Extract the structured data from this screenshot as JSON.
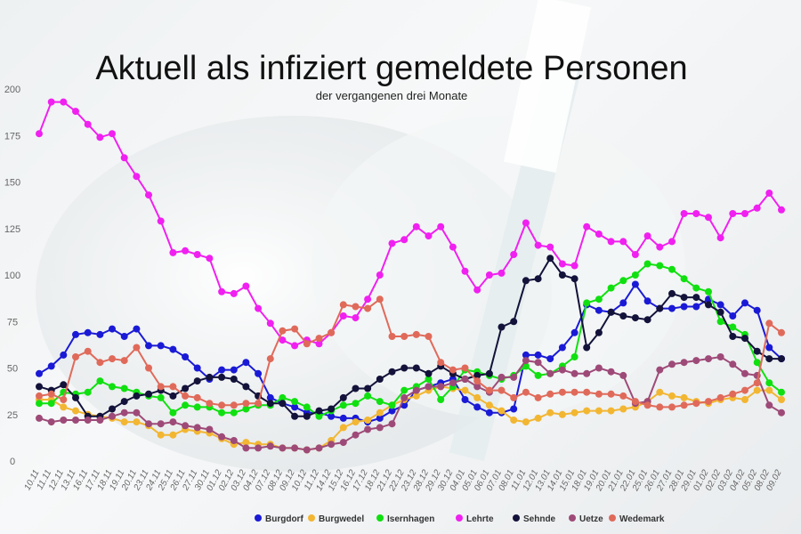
{
  "chart_data": {
    "type": "line",
    "title": "Aktuell als infiziert gemeldete Personen",
    "subtitle": "der vergangenen drei Monate",
    "xlabel": "",
    "ylabel": "",
    "ylim": [
      0,
      200
    ],
    "yticks": [
      0,
      25,
      50,
      75,
      100,
      125,
      150,
      175,
      200
    ],
    "grid": false,
    "legend": "bottom",
    "x": [
      "10.11",
      "11.11",
      "12.11",
      "13.11",
      "16.11",
      "17.11",
      "18.11",
      "19.11",
      "20.11",
      "23.11",
      "24.11",
      "25.11",
      "26.11",
      "27.11",
      "30.11",
      "01.12",
      "02.12",
      "03.12",
      "04.12",
      "07.12",
      "08.12",
      "09.12",
      "10.12",
      "11.12",
      "14.12",
      "15.12",
      "16.12",
      "17.12",
      "18.12",
      "21.12",
      "22.12",
      "23.12",
      "28.12",
      "29.12",
      "30.12",
      "04.01",
      "05.01",
      "06.01",
      "07.01",
      "08.01",
      "11.01",
      "12.01",
      "13.01",
      "14.01",
      "15.01",
      "18.01",
      "19.01",
      "20.01",
      "21.01",
      "22.01",
      "25.01",
      "26.01",
      "27.01",
      "28.01",
      "29.01",
      "01.02",
      "02.02",
      "03.02",
      "04.02",
      "05.02",
      "08.02",
      "09.02"
    ],
    "x_tick_labels": [
      "10.11",
      "11.11",
      "12.11",
      "13.11",
      "16.11",
      "17.11",
      "18.11",
      "19.11",
      "20.11",
      "23.11",
      "24.11",
      "25.11",
      "26.11",
      "27.11",
      "30.11",
      "01.12",
      "02.12",
      "03.12",
      "04.12",
      "07.12",
      "08.12",
      "09.12",
      "10.12",
      "11.12",
      "14.12",
      "15.12",
      "16.12",
      "17.12",
      "18.12",
      "21.12",
      "22.12",
      "23.12",
      "28.12",
      "29.12",
      "30.12",
      "04.01",
      "05.01",
      "06.01",
      "07.01",
      "08.01",
      "11.01",
      "12.01",
      "13.01",
      "14.01",
      "15.01",
      "18.01",
      "19.01",
      "20.01",
      "21.01",
      "22.01",
      "25.01",
      "26.01",
      "27.01",
      "28.01",
      "29.01",
      "01.02",
      "02.02",
      "03.02",
      "04.02",
      "05.02",
      "08.02",
      "09.02"
    ],
    "series": [
      {
        "name": "Burgdorf",
        "color": "#1a1ad6",
        "values": [
          47,
          51,
          57,
          68,
          69,
          68,
          71,
          67,
          71,
          62,
          62,
          60,
          56,
          50,
          44,
          49,
          49,
          53,
          47,
          34,
          31,
          29,
          26,
          26,
          24,
          23,
          23,
          21,
          23,
          27,
          30,
          38,
          40,
          42,
          44,
          33,
          29,
          26,
          26,
          28,
          57,
          57,
          55,
          61,
          69,
          84,
          81,
          80,
          85,
          95,
          86,
          82,
          82,
          83,
          83,
          87,
          84,
          78,
          85,
          81,
          61,
          55
        ]
      },
      {
        "name": "Burgwedel",
        "color": "#f2b632",
        "values": [
          33,
          33,
          29,
          27,
          25,
          24,
          23,
          21,
          21,
          19,
          14,
          14,
          17,
          16,
          15,
          12,
          9,
          10,
          9,
          9,
          7,
          7,
          6,
          7,
          11,
          18,
          21,
          22,
          26,
          30,
          33,
          35,
          38,
          40,
          39,
          38,
          34,
          30,
          27,
          22,
          21,
          23,
          26,
          25,
          26,
          27,
          27,
          27,
          28,
          29,
          32,
          37,
          35,
          34,
          32,
          31,
          33,
          34,
          33,
          38,
          38,
          33
        ]
      },
      {
        "name": "Isernhagen",
        "color": "#10e010",
        "values": [
          31,
          31,
          37,
          36,
          37,
          43,
          40,
          39,
          37,
          35,
          34,
          26,
          30,
          29,
          29,
          26,
          26,
          28,
          30,
          30,
          34,
          32,
          29,
          24,
          27,
          30,
          31,
          35,
          32,
          30,
          38,
          40,
          44,
          33,
          40,
          49,
          48,
          46,
          44,
          46,
          51,
          46,
          47,
          51,
          56,
          85,
          87,
          93,
          97,
          100,
          106,
          105,
          103,
          98,
          93,
          91,
          75,
          72,
          68,
          53,
          42,
          37
        ]
      },
      {
        "name": "Lehrte",
        "color": "#f020f0",
        "values": [
          176,
          193,
          193,
          188,
          181,
          174,
          176,
          163,
          153,
          143,
          129,
          112,
          113,
          111,
          109,
          91,
          90,
          94,
          82,
          74,
          65,
          62,
          65,
          63,
          69,
          78,
          77,
          87,
          100,
          117,
          119,
          126,
          121,
          126,
          115,
          102,
          92,
          100,
          101,
          111,
          128,
          116,
          115,
          106,
          105,
          126,
          122,
          118,
          118,
          111,
          121,
          115,
          118,
          133,
          133,
          131,
          120,
          133,
          133,
          136,
          144,
          135
        ]
      },
      {
        "name": "Sehnde",
        "color": "#13123a",
        "values": [
          40,
          38,
          41,
          34,
          24,
          24,
          28,
          32,
          35,
          36,
          38,
          35,
          39,
          43,
          45,
          45,
          44,
          40,
          35,
          31,
          31,
          24,
          24,
          27,
          28,
          34,
          39,
          39,
          44,
          48,
          50,
          50,
          47,
          51,
          47,
          44,
          46,
          47,
          72,
          75,
          97,
          98,
          109,
          100,
          98,
          61,
          69,
          80,
          78,
          77,
          76,
          82,
          90,
          88,
          88,
          84,
          80,
          67,
          66,
          59,
          55,
          55
        ]
      },
      {
        "name": "Uetze",
        "color": "#9e4a78",
        "values": [
          23,
          21,
          22,
          22,
          22,
          22,
          24,
          26,
          26,
          20,
          20,
          21,
          19,
          18,
          17,
          13,
          11,
          7,
          7,
          8,
          7,
          7,
          6,
          7,
          9,
          10,
          14,
          17,
          18,
          20,
          34,
          38,
          40,
          40,
          42,
          44,
          40,
          37,
          45,
          45,
          54,
          53,
          47,
          49,
          47,
          47,
          50,
          48,
          46,
          31,
          32,
          49,
          52,
          53,
          54,
          55,
          56,
          52,
          47,
          46,
          30,
          26
        ]
      },
      {
        "name": "Wedemark",
        "color": "#e06a5a",
        "values": [
          35,
          36,
          33,
          56,
          59,
          53,
          55,
          54,
          61,
          50,
          40,
          40,
          35,
          34,
          31,
          30,
          30,
          31,
          31,
          55,
          70,
          71,
          63,
          66,
          69,
          84,
          83,
          82,
          87,
          67,
          67,
          68,
          67,
          53,
          49,
          50,
          43,
          38,
          38,
          34,
          37,
          34,
          36,
          37,
          37,
          37,
          36,
          36,
          35,
          32,
          30,
          29,
          29,
          30,
          31,
          32,
          34,
          36,
          38,
          42,
          74,
          69
        ]
      }
    ]
  }
}
